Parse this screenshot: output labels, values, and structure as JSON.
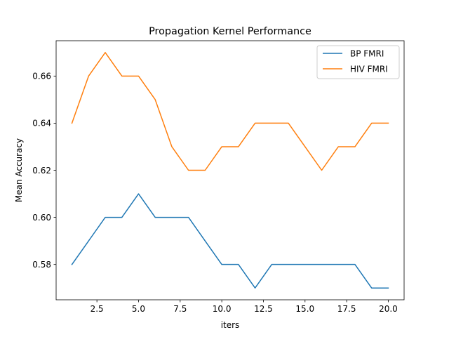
{
  "chart_data": {
    "type": "line",
    "title": "Propagation Kernel Performance",
    "xlabel": "iters",
    "ylabel": "Mean Accuracy",
    "x": [
      1,
      2,
      3,
      4,
      5,
      6,
      7,
      8,
      9,
      10,
      11,
      12,
      13,
      14,
      15,
      16,
      17,
      18,
      19,
      20
    ],
    "xlim": [
      0.05,
      20.95
    ],
    "ylim": [
      0.565,
      0.675
    ],
    "xticks": [
      2.5,
      5.0,
      7.5,
      10.0,
      12.5,
      15.0,
      17.5,
      20.0
    ],
    "xtick_labels": [
      "2.5",
      "5.0",
      "7.5",
      "10.0",
      "12.5",
      "15.0",
      "17.5",
      "20.0"
    ],
    "yticks": [
      0.58,
      0.6,
      0.62,
      0.64,
      0.66
    ],
    "ytick_labels": [
      "0.58",
      "0.60",
      "0.62",
      "0.64",
      "0.66"
    ],
    "grid": false,
    "legend_position": "top-right",
    "series": [
      {
        "name": "BP FMRI",
        "color": "#1f77b4",
        "values": [
          0.58,
          0.59,
          0.6,
          0.6,
          0.61,
          0.6,
          0.6,
          0.6,
          0.59,
          0.58,
          0.58,
          0.57,
          0.58,
          0.58,
          0.58,
          0.58,
          0.58,
          0.58,
          0.57,
          0.57
        ]
      },
      {
        "name": "HIV FMRI",
        "color": "#ff7f0e",
        "values": [
          0.64,
          0.66,
          0.67,
          0.66,
          0.66,
          0.65,
          0.63,
          0.62,
          0.62,
          0.63,
          0.63,
          0.64,
          0.64,
          0.64,
          0.63,
          0.62,
          0.63,
          0.63,
          0.64,
          0.64
        ]
      }
    ]
  }
}
